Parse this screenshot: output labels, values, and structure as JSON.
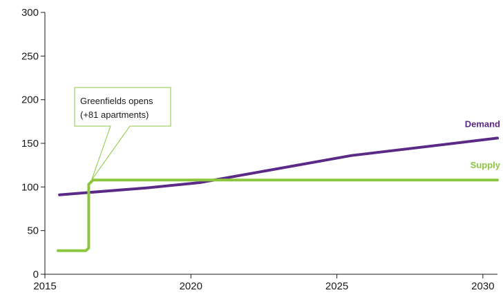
{
  "chart_data": {
    "type": "line",
    "title": "",
    "xlabel": "",
    "ylabel": "",
    "xlim": [
      2015,
      2030.5
    ],
    "ylim": [
      0,
      300
    ],
    "x_ticks": [
      "2015",
      "2020",
      "2025",
      "2030"
    ],
    "y_ticks": [
      "0",
      "50",
      "100",
      "150",
      "200",
      "250",
      "300"
    ],
    "grid": false,
    "series": [
      {
        "name": "Demand",
        "color": "#5b2a86",
        "points": [
          [
            2015.5,
            91
          ],
          [
            2018.5,
            99
          ],
          [
            2020.3,
            105
          ],
          [
            2025.5,
            136
          ],
          [
            2030.5,
            156
          ]
        ]
      },
      {
        "name": "Supply",
        "color": "#8cc63f",
        "points": [
          [
            2015.45,
            27
          ],
          [
            2016.4,
            27
          ],
          [
            2016.5,
            30
          ],
          [
            2016.5,
            103
          ],
          [
            2016.65,
            108
          ],
          [
            2030.5,
            108
          ]
        ]
      }
    ],
    "annotation": {
      "lines": [
        "Greenfields opens",
        "(+81 apartments)"
      ],
      "target": [
        2016.6,
        108
      ],
      "color": "#8cc63f"
    }
  }
}
